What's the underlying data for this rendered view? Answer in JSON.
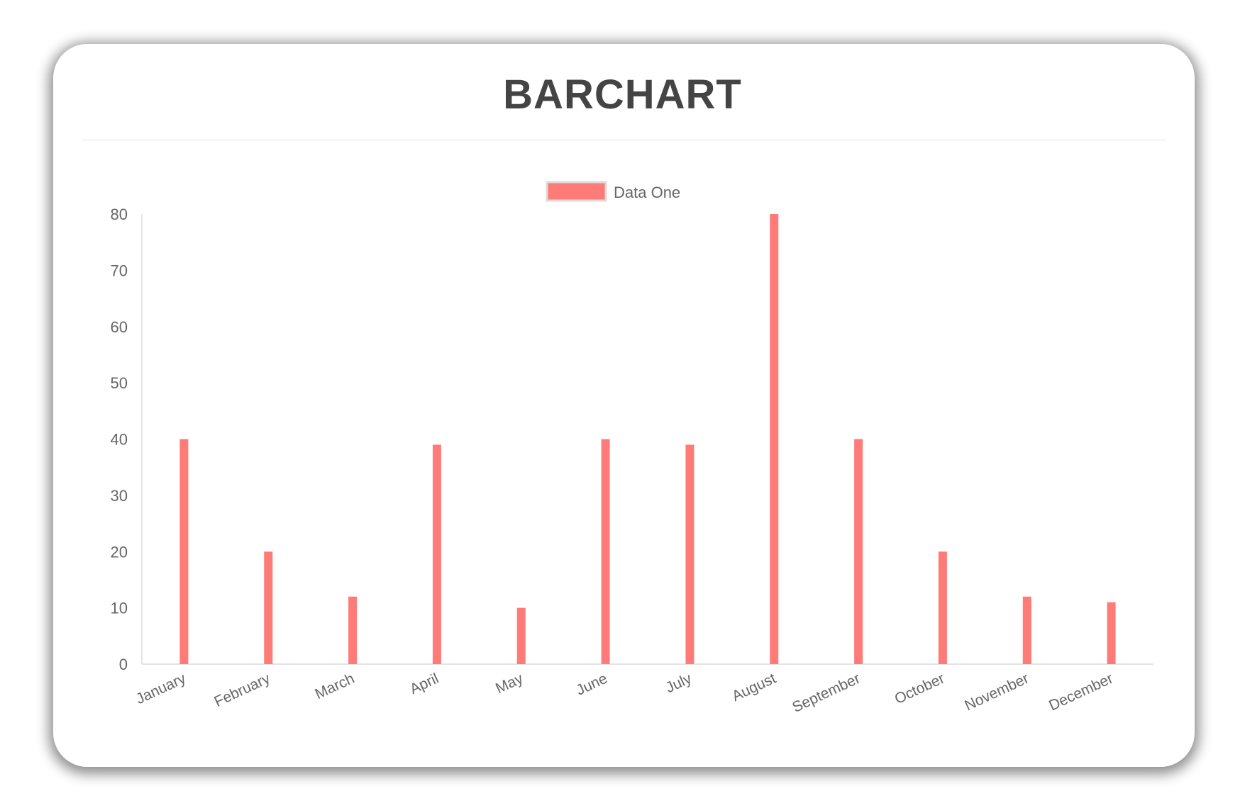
{
  "chart_data": {
    "type": "bar",
    "title": "BARCHART",
    "categories": [
      "January",
      "February",
      "March",
      "April",
      "May",
      "June",
      "July",
      "August",
      "September",
      "October",
      "November",
      "December"
    ],
    "series": [
      {
        "name": "Data One",
        "values": [
          40,
          20,
          12,
          39,
          10,
          40,
          39,
          80,
          40,
          20,
          12,
          11
        ],
        "color": "#ff7b77"
      }
    ],
    "yticks": [
      "0",
      "10",
      "20",
      "30",
      "40",
      "50",
      "60",
      "70",
      "80"
    ],
    "ylim": [
      0,
      80
    ],
    "grid": false,
    "legend": "top-center",
    "xlabel": "",
    "ylabel": ""
  }
}
